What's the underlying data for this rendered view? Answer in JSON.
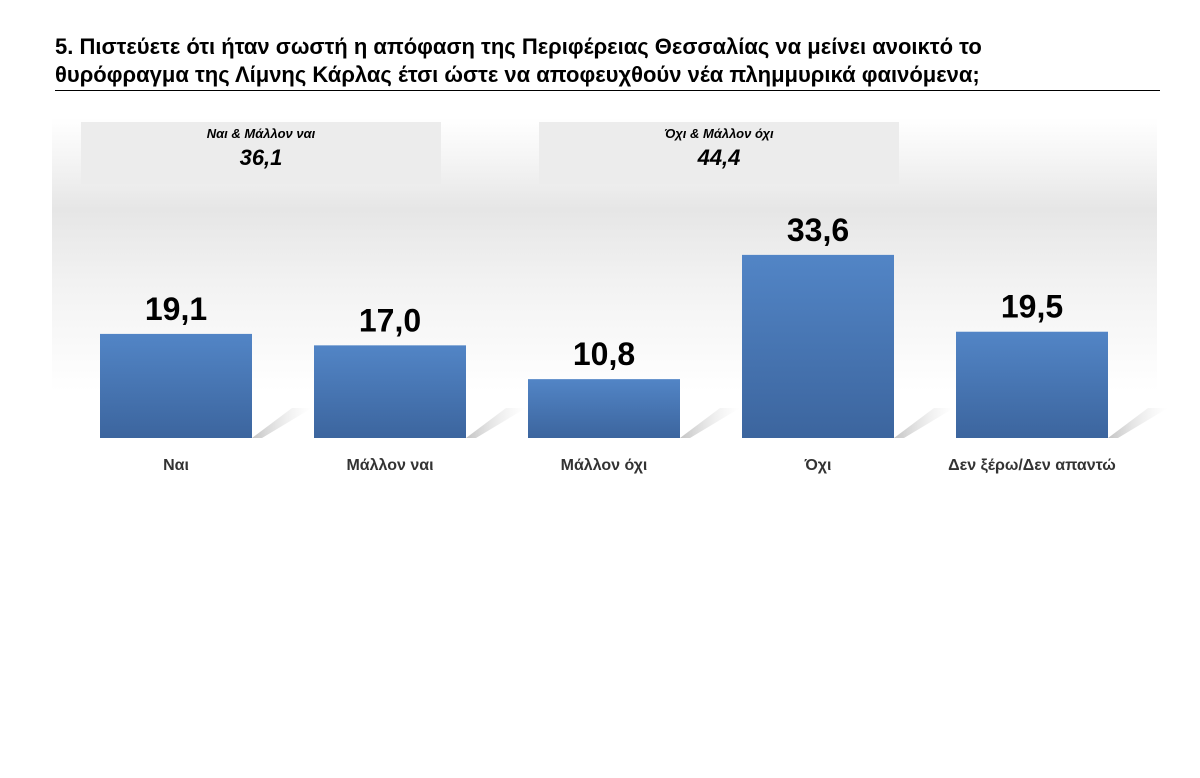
{
  "title": {
    "line1": "5. Πιστεύετε ότι ήταν σωστή η απόφαση της Περιφέρειας Θεσσαλίας να μείνει ανοικτό το",
    "line2": "θυρόφραγμα της Λίμνης Κάρλας έτσι ώστε να αποφευχθούν νέα πλημμυρικά φαινόμενα;"
  },
  "summary": [
    {
      "label": "Ναι & Μάλλον ναι",
      "value": "36,1"
    },
    {
      "label": "Όχι & Μάλλον όχι",
      "value": "44,4"
    }
  ],
  "colors": {
    "bar": "#4a7ab9",
    "bar_dark": "#3e67a0",
    "shadow": "#cfcfcf"
  },
  "chart_data": {
    "type": "bar",
    "title": "",
    "categories": [
      "Ναι",
      "Μάλλον ναι",
      "Μάλλον όχι",
      "Όχι",
      "Δεν ξέρω/Δεν απαντώ"
    ],
    "values": [
      19.1,
      17.0,
      10.8,
      33.6,
      19.5
    ],
    "data_labels": [
      "19,1",
      "17,0",
      "10,8",
      "33,6",
      "19,5"
    ],
    "xlabel": "",
    "ylabel": "",
    "ylim": [
      0,
      40
    ],
    "grid": false,
    "legend": "none"
  }
}
